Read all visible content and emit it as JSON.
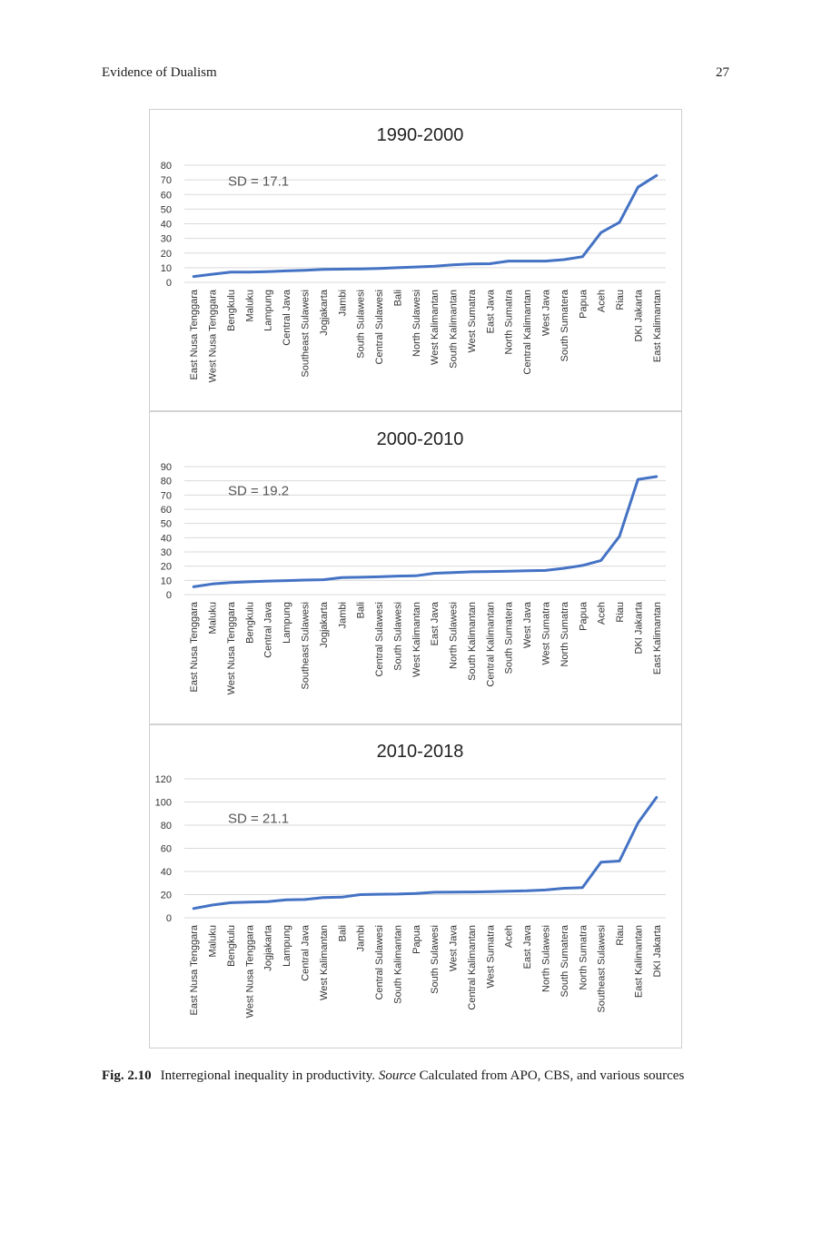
{
  "page": {
    "running_head": "Evidence of Dualism",
    "page_number": "27"
  },
  "caption": {
    "label": "Fig. 2.10",
    "text_before": "Interregional inequality in productivity.",
    "source_word": "Source",
    "text_after": " Calculated from APO, CBS, and various sources"
  },
  "colors": {
    "line": "#4472c4",
    "grid": "#d9d9d9",
    "text": "#333333"
  },
  "chart_data": [
    {
      "type": "line",
      "title": "1990-2000",
      "annotation": "SD = 17.1",
      "ylim": [
        0,
        80
      ],
      "yticks": [
        0,
        10,
        20,
        30,
        40,
        50,
        60,
        70,
        80
      ],
      "grid": true,
      "legend": "none",
      "categories": [
        "East Nusa Tenggara",
        "West Nusa Tenggara",
        "Bengkulu",
        "Maluku",
        "Lampung",
        "Central Java",
        "Southeast Sulawesi",
        "Jogjakarta",
        "Jambi",
        "South Sulawesi",
        "Central Sulawesi",
        "Bali",
        "North Sulawesi",
        "West Kalimantan",
        "South Kalimantan",
        "West Sumatra",
        "East Java",
        "North Sumatra",
        "Central Kalimantan",
        "West Java",
        "South Sumatera",
        "Papua",
        "Aceh",
        "Riau",
        "DKI Jakarta",
        "East Kalimantan"
      ],
      "values": [
        4,
        5.5,
        7,
        7,
        7.3,
        7.8,
        8.2,
        8.8,
        9,
        9.2,
        9.5,
        10,
        10.5,
        11,
        12,
        12.5,
        12.7,
        14.5,
        14.5,
        14.5,
        15.5,
        17.5,
        34,
        41,
        65,
        73
      ]
    },
    {
      "type": "line",
      "title": "2000-2010",
      "annotation": "SD = 19.2",
      "ylim": [
        0,
        90
      ],
      "yticks": [
        0,
        10,
        20,
        30,
        40,
        50,
        60,
        70,
        80,
        90
      ],
      "grid": true,
      "legend": "none",
      "categories": [
        "East Nusa Tenggara",
        "Maluku",
        "West Nusa Tenggara",
        "Bengkulu",
        "Central Java",
        "Lampung",
        "Southeast Sulawesi",
        "Jogjakarta",
        "Jambi",
        "Bali",
        "Central Sulawesi",
        "South Sulawesi",
        "West Kalimantan",
        "East Java",
        "North Sulawesi",
        "South Kalimantan",
        "Central Kalimantan",
        "South Sumatera",
        "West Java",
        "West Sumatra",
        "North Sumatra",
        "Papua",
        "Aceh",
        "Riau",
        "DKI Jakarta",
        "East Kalimantan"
      ],
      "values": [
        5.5,
        7.5,
        8.5,
        9,
        9.5,
        9.8,
        10.2,
        10.5,
        12,
        12.2,
        12.5,
        13,
        13.2,
        15,
        15.5,
        16,
        16.2,
        16.5,
        16.7,
        17,
        18.5,
        20.5,
        24,
        41,
        81,
        83
      ]
    },
    {
      "type": "line",
      "title": "2010-2018",
      "annotation": "SD = 21.1",
      "ylim": [
        0,
        120
      ],
      "yticks": [
        0,
        20,
        40,
        60,
        80,
        100,
        120
      ],
      "grid": true,
      "legend": "none",
      "categories": [
        "East Nusa Tenggara",
        "Maluku",
        "Bengkulu",
        "West Nusa Tenggara",
        "Jogjakarta",
        "Lampung",
        "Central Java",
        "West Kalimantan",
        "Bali",
        "Jambi",
        "Central Sulawesi",
        "South Kalimantan",
        "Papua",
        "South Sulawesi",
        "West Java",
        "Central Kalimantan",
        "West Sumatra",
        "Aceh",
        "East Java",
        "North Sulawesi",
        "South Sumatera",
        "North Sumatra",
        "Southeast Sulawesi",
        "Riau",
        "East Kalimantan",
        "DKI Jakarta"
      ],
      "values": [
        8,
        11,
        13,
        13.5,
        14,
        15.5,
        15.8,
        17.5,
        17.8,
        20,
        20.3,
        20.5,
        21,
        22,
        22.2,
        22.3,
        22.5,
        23,
        23.3,
        24,
        25.5,
        26,
        48,
        49,
        82,
        104
      ]
    }
  ]
}
